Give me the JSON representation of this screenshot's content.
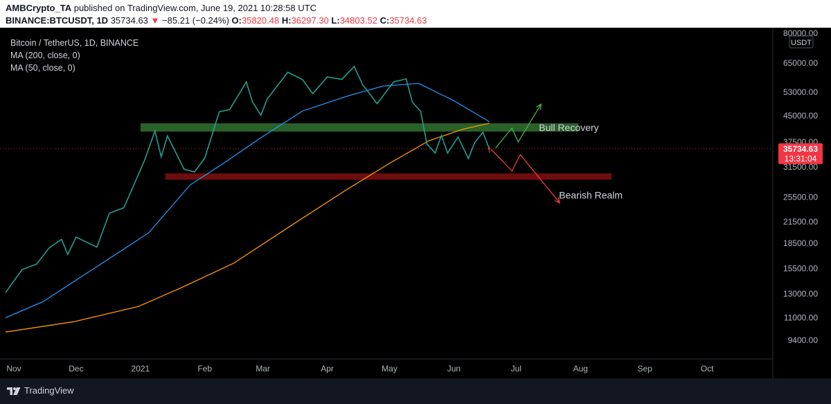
{
  "header": {
    "author": "AMBCrypto_TA",
    "published_text": "published on TradingView.com, June 19, 2021 10:28:58 UTC",
    "symbol": "BINANCE:BTCUSDT, 1D",
    "last": "35734.63",
    "change": "−85.21 (−0.24%)",
    "o_label": "O:",
    "o": "35820.48",
    "h_label": "H:",
    "h": "36297.30",
    "l_label": "L:",
    "l": "34803.52",
    "c_label": "C:",
    "c": "35734.63"
  },
  "legend": {
    "title": "Bitcoin / TetherUS, 1D, BINANCE",
    "ma200": "MA (200, close, 0)",
    "ma50": "MA (50, close, 0)"
  },
  "footer": {
    "brand": "TradingView"
  },
  "chart_data": {
    "type": "line",
    "title": "Bitcoin / TetherUS, 1D, BINANCE",
    "y_scale": "log",
    "ylim": [
      8500,
      80000
    ],
    "unit_label": "USDT",
    "y_ticks": [
      80000,
      65000,
      53000,
      45000,
      37500,
      31500,
      25500,
      21500,
      18500,
      15500,
      13000,
      11000,
      9400
    ],
    "y_tick_labels": [
      "80000.00",
      "65000.00",
      "53000.00",
      "45000.00",
      "37500.00",
      "31500.00",
      "25500.00",
      "21500.00",
      "18500.00",
      "15500.00",
      "13000.00",
      "11000.00",
      "9400.00"
    ],
    "x_range": [
      "2020-10-28",
      "2021-10-31"
    ],
    "x_ticks": [
      {
        "date": "2020-11-01",
        "label": "Nov"
      },
      {
        "date": "2020-12-01",
        "label": "Dec"
      },
      {
        "date": "2021-01-01",
        "label": "2021"
      },
      {
        "date": "2021-02-01",
        "label": "Feb"
      },
      {
        "date": "2021-03-01",
        "label": "Mar"
      },
      {
        "date": "2021-04-01",
        "label": "Apr"
      },
      {
        "date": "2021-05-01",
        "label": "May"
      },
      {
        "date": "2021-06-01",
        "label": "Jun"
      },
      {
        "date": "2021-07-01",
        "label": "Jul"
      },
      {
        "date": "2021-08-01",
        "label": "Aug"
      },
      {
        "date": "2021-09-01",
        "label": "Sep"
      },
      {
        "date": "2021-10-01",
        "label": "Oct"
      }
    ],
    "price_path": [
      [
        "2020-10-28",
        13100
      ],
      [
        "2020-11-05",
        15400
      ],
      [
        "2020-11-12",
        16000
      ],
      [
        "2020-11-18",
        17900
      ],
      [
        "2020-11-24",
        19000
      ],
      [
        "2020-11-27",
        17100
      ],
      [
        "2020-12-01",
        19300
      ],
      [
        "2020-12-11",
        18000
      ],
      [
        "2020-12-17",
        22800
      ],
      [
        "2020-12-24",
        23700
      ],
      [
        "2020-12-28",
        27000
      ],
      [
        "2021-01-03",
        33000
      ],
      [
        "2021-01-08",
        40500
      ],
      [
        "2021-01-11",
        33800
      ],
      [
        "2021-01-14",
        39100
      ],
      [
        "2021-01-22",
        31000
      ],
      [
        "2021-01-27",
        30400
      ],
      [
        "2021-02-01",
        33500
      ],
      [
        "2021-02-08",
        46300
      ],
      [
        "2021-02-13",
        47000
      ],
      [
        "2021-02-21",
        57000
      ],
      [
        "2021-02-24",
        49500
      ],
      [
        "2021-02-28",
        45200
      ],
      [
        "2021-03-03",
        50500
      ],
      [
        "2021-03-13",
        61000
      ],
      [
        "2021-03-20",
        58000
      ],
      [
        "2021-03-25",
        52500
      ],
      [
        "2021-04-01",
        59000
      ],
      [
        "2021-04-08",
        58000
      ],
      [
        "2021-04-14",
        63500
      ],
      [
        "2021-04-18",
        56000
      ],
      [
        "2021-04-25",
        49000
      ],
      [
        "2021-05-03",
        57000
      ],
      [
        "2021-05-09",
        58200
      ],
      [
        "2021-05-12",
        49500
      ],
      [
        "2021-05-16",
        46400
      ],
      [
        "2021-05-19",
        37000
      ],
      [
        "2021-05-23",
        34700
      ],
      [
        "2021-05-26",
        39200
      ],
      [
        "2021-05-29",
        34700
      ],
      [
        "2021-06-03",
        38800
      ],
      [
        "2021-06-08",
        33400
      ],
      [
        "2021-06-11",
        37300
      ],
      [
        "2021-06-15",
        40100
      ],
      [
        "2021-06-18",
        35800
      ]
    ],
    "candles": [
      {
        "date": "2021-06-18",
        "open": 35820.48,
        "high": 36297.3,
        "low": 34803.52,
        "close": 35734.63
      }
    ],
    "series": [
      {
        "name": "MA (50, close, 0)",
        "color": "#2196f3",
        "points": [
          [
            "2020-10-28",
            11000
          ],
          [
            "2020-11-15",
            12300
          ],
          [
            "2020-12-01",
            14300
          ],
          [
            "2020-12-20",
            17100
          ],
          [
            "2021-01-05",
            19900
          ],
          [
            "2021-01-25",
            27800
          ],
          [
            "2021-02-10",
            32300
          ],
          [
            "2021-02-28",
            38600
          ],
          [
            "2021-03-20",
            46500
          ],
          [
            "2021-04-10",
            51500
          ],
          [
            "2021-04-28",
            55400
          ],
          [
            "2021-05-15",
            56400
          ],
          [
            "2021-06-01",
            50000
          ],
          [
            "2021-06-18",
            43200
          ]
        ]
      },
      {
        "name": "MA (200, close, 0)",
        "color": "#ff9800",
        "points": [
          [
            "2020-10-28",
            9950
          ],
          [
            "2020-11-30",
            10700
          ],
          [
            "2020-12-31",
            11900
          ],
          [
            "2021-01-20",
            13500
          ],
          [
            "2021-02-15",
            16100
          ],
          [
            "2021-03-15",
            21000
          ],
          [
            "2021-04-10",
            26800
          ],
          [
            "2021-05-01",
            32300
          ],
          [
            "2021-05-20",
            37800
          ],
          [
            "2021-06-05",
            40900
          ],
          [
            "2021-06-18",
            42700
          ]
        ]
      }
    ],
    "zones": [
      {
        "from": "2021-01-01",
        "to": "2021-07-31",
        "low": 40300,
        "high": 42700,
        "color": "#2e6b2e"
      },
      {
        "from": "2021-01-13",
        "to": "2021-08-16",
        "low": 28800,
        "high": 30100,
        "color": "#7a0e0e"
      }
    ],
    "last_price_label": "35734.63",
    "countdown": "13:31:04",
    "annotations": [
      {
        "text": "Bull Recovery",
        "path": [
          [
            "2021-06-21",
            35900
          ],
          [
            "2021-06-29",
            41300
          ],
          [
            "2021-07-02",
            37500
          ],
          [
            "2021-07-13",
            48800
          ]
        ],
        "color": "#4caf50"
      },
      {
        "text": "Bearish Realm",
        "path": [
          [
            "2021-06-19",
            35600
          ],
          [
            "2021-06-29",
            30600
          ],
          [
            "2021-07-03",
            34300
          ],
          [
            "2021-07-22",
            24500
          ]
        ],
        "color": "#f23645"
      }
    ]
  }
}
